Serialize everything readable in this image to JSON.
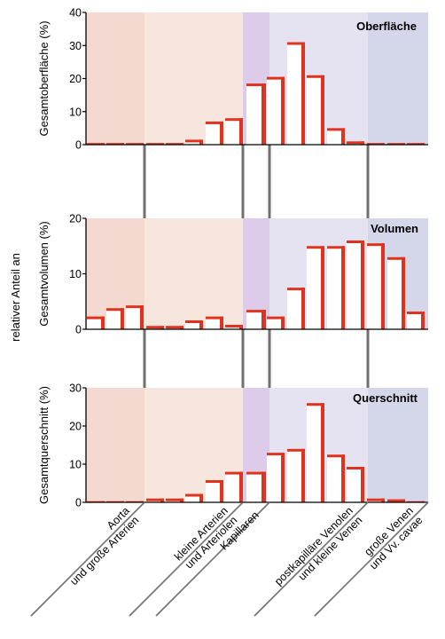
{
  "side_label": "relativer Anteil an",
  "colors": {
    "zone_aorta": "#f3d9cf",
    "zone_arterien": "#f6e6de",
    "zone_kapillaren": "#dcccea",
    "zone_venolen": "#e5e3f1",
    "zone_venen": "#d4d7ea",
    "bar_red": "#e0321c",
    "bar_white": "#ffffff",
    "divider": "#707070"
  },
  "categories": [
    "Aorta und große Arterien",
    "kleine Arterien und Arteriolen",
    "Kapillaren",
    "postkapilläre Venolen und kleine Venen",
    "große Venen und Vv. cavae"
  ],
  "category_lines": [
    [
      "Aorta",
      "und große Arterien"
    ],
    [
      "kleine Arterien",
      "und Arteriolen"
    ],
    [
      "Kapillaren"
    ],
    [
      "postkapilläre Venolen",
      "und kleine Venen"
    ],
    [
      "große Venen",
      "und Vv. cavae"
    ]
  ],
  "chart_data": [
    {
      "type": "bar",
      "title": "Oberfläche",
      "ylabel": "Gesamtoberfläche (%)",
      "ylim": [
        0,
        40
      ],
      "yticks": [
        0,
        10,
        20,
        30,
        40
      ],
      "values": [
        0.5,
        0.5,
        0.5,
        0.5,
        0.5,
        1.5,
        7,
        8,
        18.5,
        20.5,
        31,
        21,
        5,
        1,
        0.5,
        0.5,
        0.5
      ]
    },
    {
      "type": "bar",
      "title": "Volumen",
      "ylabel": "Gesamtvolumen (%)",
      "ylim": [
        0,
        20
      ],
      "yticks": [
        0,
        10,
        20
      ],
      "values": [
        2.3,
        3.8,
        4.3,
        0.6,
        0.6,
        1.6,
        2.3,
        0.8,
        3.5,
        2.3,
        7.5,
        15,
        15,
        16,
        15.5,
        13,
        3.2
      ]
    },
    {
      "type": "bar",
      "title": "Querschnitt",
      "ylabel": "Gesamtquerschnitt (%)",
      "ylim": [
        0,
        30
      ],
      "yticks": [
        0,
        10,
        20,
        30
      ],
      "values": [
        0.3,
        0.3,
        0.3,
        1,
        1,
        2.2,
        5.8,
        8,
        8,
        13,
        14,
        26,
        12.5,
        9.3,
        1,
        0.8,
        0.3
      ]
    }
  ]
}
